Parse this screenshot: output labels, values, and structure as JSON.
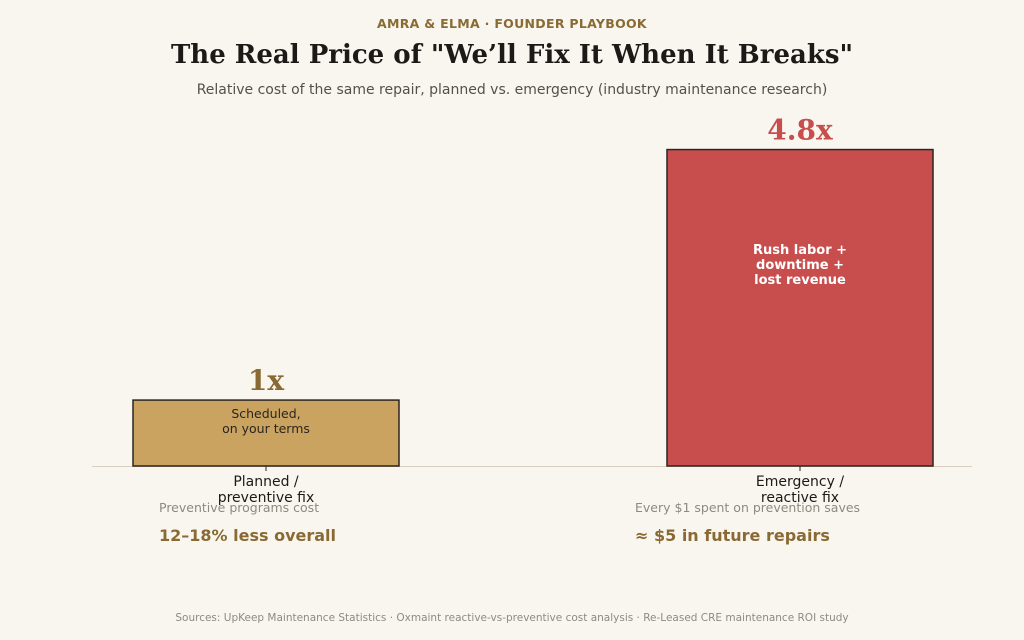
{
  "header": {
    "eyebrow": "AMRA & ELMA  ·  FOUNDER PLAYBOOK",
    "title": "The Real Price of \"We’ll Fix It When It Breaks\"",
    "subtitle": "Relative cost of the same repair, planned vs. emergency (industry maintenance research)"
  },
  "chart_data": {
    "type": "bar",
    "categories": [
      "Planned /\npreventive fix",
      "Emergency /\nreactive fix"
    ],
    "values": [
      1,
      4.8
    ],
    "value_labels": [
      "1x",
      "4.8x"
    ],
    "bar_annotations": [
      "Scheduled,\non your terms",
      "Rush labor +\ndowntime +\nlost revenue"
    ],
    "colors": [
      "#c9a35f",
      "#c84e4e"
    ],
    "value_label_colors": [
      "#8a6a33",
      "#c84e4e"
    ],
    "ylim": [
      0,
      5.4
    ],
    "grid": false,
    "title": "The Real Price of \"We’ll Fix It When It Breaks\"",
    "xlabel": "",
    "ylabel": ""
  },
  "notes": [
    {
      "label": "Preventive programs cost",
      "value": "12–18% less overall"
    },
    {
      "label": "Every $1 spent on prevention saves",
      "value": "≈ $5 in future repairs"
    }
  ],
  "footer": {
    "sources": "Sources: UpKeep Maintenance Statistics · Oxmaint reactive-vs-preventive cost analysis · Re-Leased CRE maintenance ROI study"
  }
}
